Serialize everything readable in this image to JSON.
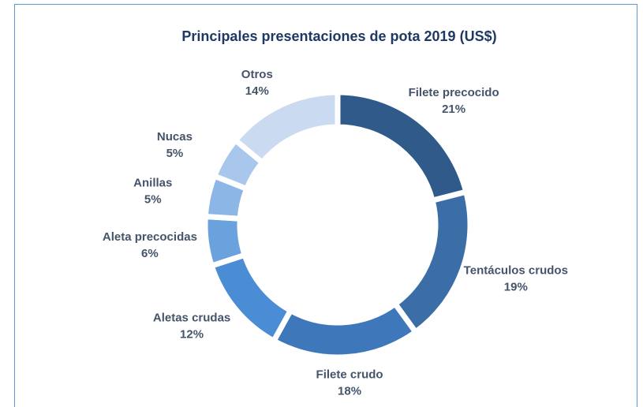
{
  "chart_data": {
    "type": "donut",
    "title": "Principales presentaciones de pota 2019 (US$)",
    "categories": [
      "Filete precocido",
      "Tentáculos crudos",
      "Filete crudo",
      "Aletas crudas",
      "Aleta precocidas",
      "Anillas",
      "Nucas",
      "Otros"
    ],
    "values": [
      21,
      19,
      18,
      12,
      6,
      5,
      5,
      14
    ],
    "value_labels": [
      "21%",
      "19%",
      "18%",
      "12%",
      "6%",
      "5%",
      "5%",
      "14%"
    ],
    "colors": [
      "#2f5a8a",
      "#3b6ea6",
      "#3e78bb",
      "#4a8dd4",
      "#6aa2de",
      "#8cb6e6",
      "#a9c7ec",
      "#c9daf1"
    ]
  }
}
